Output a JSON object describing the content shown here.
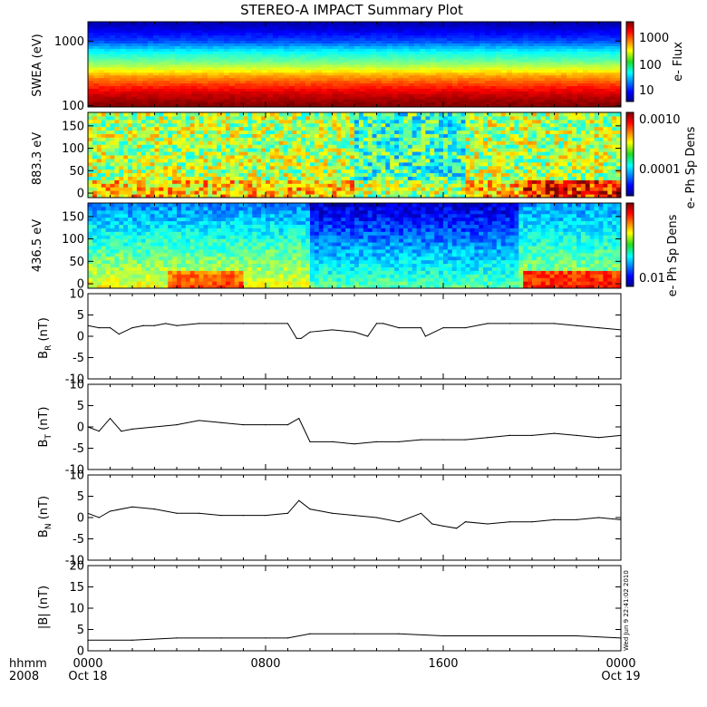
{
  "title": "STEREO-A IMPACT Summary Plot",
  "x_axis": {
    "row1_left": "hhmm",
    "row2_left": "2008",
    "ticks": [
      {
        "hour": 0,
        "label": "0000",
        "date": "Oct 18"
      },
      {
        "hour": 8,
        "label": "0800",
        "date": ""
      },
      {
        "hour": 16,
        "label": "1600",
        "date": ""
      },
      {
        "hour": 24,
        "label": "0000",
        "date": "Oct 19"
      }
    ]
  },
  "timestamp": "Wed Jun 9 22:41:02 2010",
  "panels": {
    "swea": {
      "ylabel": "SWEA (eV)",
      "yticks": [
        "1000",
        "100"
      ],
      "cbar_label": "e- Flux",
      "cbar_ticks": [
        "1000",
        "100",
        "10"
      ]
    },
    "pad883": {
      "ylabel": "883.3 eV",
      "yticks": [
        "150",
        "100",
        "50",
        "0"
      ],
      "cbar_label": "e- Ph Sp Dens",
      "cbar_ticks": [
        "0.0010",
        "0.0001"
      ]
    },
    "pad436": {
      "ylabel": "436.5 eV",
      "yticks": [
        "150",
        "100",
        "50",
        "0"
      ],
      "cbar_label": "e- Ph Sp Dens",
      "cbar_ticks": [
        "0.01"
      ]
    },
    "br": {
      "ylabel": "BR (nT)",
      "ylabel_main": "B",
      "ylabel_sub": "R",
      "ylabel_unit": " (nT)",
      "yticks": [
        "10",
        "5",
        "0",
        "-5",
        "-10"
      ]
    },
    "bt": {
      "ylabel": "BT (nT)",
      "ylabel_main": "B",
      "ylabel_sub": "T",
      "ylabel_unit": " (nT)",
      "yticks": [
        "10",
        "5",
        "0",
        "-5",
        "-10"
      ]
    },
    "bn": {
      "ylabel": "BN (nT)",
      "ylabel_main": "B",
      "ylabel_sub": "N",
      "ylabel_unit": " (nT)",
      "yticks": [
        "10",
        "5",
        "0",
        "-5",
        "-10"
      ]
    },
    "bmag": {
      "ylabel": "|B| (nT)",
      "yticks": [
        "20",
        "15",
        "10",
        "5",
        "0"
      ]
    }
  },
  "chart_data": [
    {
      "type": "heatmap",
      "panel": "swea",
      "ylabel": "SWEA (eV)",
      "yscale": "log",
      "ylim": [
        95,
        2000
      ],
      "x": [
        0,
        24
      ],
      "colorbar": {
        "label": "e- Flux",
        "scale": "log",
        "range": [
          3,
          3000
        ]
      },
      "energy_profile": [
        [
          100,
          3000
        ],
        [
          150,
          1800
        ],
        [
          200,
          1000
        ],
        [
          300,
          400
        ],
        [
          400,
          150
        ],
        [
          500,
          80
        ],
        [
          700,
          40
        ],
        [
          1000,
          12
        ],
        [
          1500,
          6
        ],
        [
          2000,
          4
        ]
      ]
    },
    {
      "type": "heatmap",
      "panel": "pad883",
      "ylabel": "883.3 eV",
      "ylim": [
        -10,
        180
      ],
      "x": [
        0,
        24
      ],
      "colorbar": {
        "label": "e- Ph Sp Dens",
        "scale": "log",
        "range": [
          3e-05,
          0.0015
        ]
      }
    },
    {
      "type": "heatmap",
      "panel": "pad436",
      "ylabel": "436.5 eV",
      "ylim": [
        -10,
        180
      ],
      "x": [
        0,
        24
      ],
      "colorbar": {
        "label": "e- Ph Sp Dens",
        "scale": "log",
        "range": [
          0.005,
          0.05
        ]
      }
    },
    {
      "type": "line",
      "panel": "br",
      "ylabel": "BR (nT)",
      "ylim": [
        -10,
        10
      ],
      "x": [
        0,
        0.5,
        1,
        1.4,
        2,
        2.5,
        3,
        3.5,
        4,
        5,
        6,
        7,
        8,
        9,
        9.4,
        9.6,
        10,
        11,
        12,
        12.6,
        13,
        13.3,
        14,
        15,
        15.2,
        16,
        17,
        18,
        19,
        20,
        21,
        22,
        23,
        24
      ],
      "values": [
        2.5,
        2,
        2,
        0.5,
        2,
        2.5,
        2.5,
        3,
        2.5,
        3,
        3,
        3,
        3,
        3,
        -0.5,
        -0.5,
        1,
        1.5,
        1,
        0,
        3,
        3,
        2,
        2,
        0,
        2,
        2,
        3,
        3,
        3,
        3,
        2.5,
        2,
        1.5
      ]
    },
    {
      "type": "line",
      "panel": "bt",
      "ylabel": "BT (nT)",
      "ylim": [
        -10,
        10
      ],
      "x": [
        0,
        0.5,
        1,
        1.5,
        2,
        3,
        4,
        5,
        6,
        7,
        8,
        9,
        9.5,
        10,
        11,
        12,
        13,
        14,
        15,
        16,
        17,
        18,
        19,
        20,
        21,
        22,
        23,
        24
      ],
      "values": [
        0,
        -1,
        2,
        -1,
        -0.5,
        0,
        0.5,
        1.5,
        1,
        0.5,
        0.5,
        0.5,
        2,
        -3.5,
        -3.5,
        -4,
        -3.5,
        -3.5,
        -3,
        -3,
        -3,
        -2.5,
        -2,
        -2,
        -1.5,
        -2,
        -2.5,
        -2
      ]
    },
    {
      "type": "line",
      "panel": "bn",
      "ylabel": "BN (nT)",
      "ylim": [
        -10,
        10
      ],
      "x": [
        0,
        0.5,
        1,
        2,
        3,
        4,
        5,
        6,
        7,
        8,
        9,
        9.5,
        10,
        11,
        12,
        13,
        14,
        15,
        15.5,
        16,
        16.6,
        17,
        18,
        19,
        20,
        21,
        22,
        23,
        24
      ],
      "values": [
        1,
        0,
        1.5,
        2.5,
        2,
        1,
        1,
        0.5,
        0.5,
        0.5,
        1,
        4,
        2,
        1,
        0.5,
        0,
        -1,
        1,
        -1.5,
        -2,
        -2.5,
        -1,
        -1.5,
        -1,
        -1,
        -0.5,
        -0.5,
        0,
        -0.5
      ]
    },
    {
      "type": "line",
      "panel": "bmag",
      "ylabel": "|B| (nT)",
      "ylim": [
        0,
        20
      ],
      "x": [
        0,
        2,
        4,
        6,
        8,
        9,
        10,
        12,
        14,
        16,
        18,
        20,
        22,
        24
      ],
      "values": [
        2.5,
        2.5,
        3,
        3,
        3,
        3,
        4,
        4,
        4,
        3.5,
        3.5,
        3.5,
        3.5,
        3
      ]
    }
  ]
}
